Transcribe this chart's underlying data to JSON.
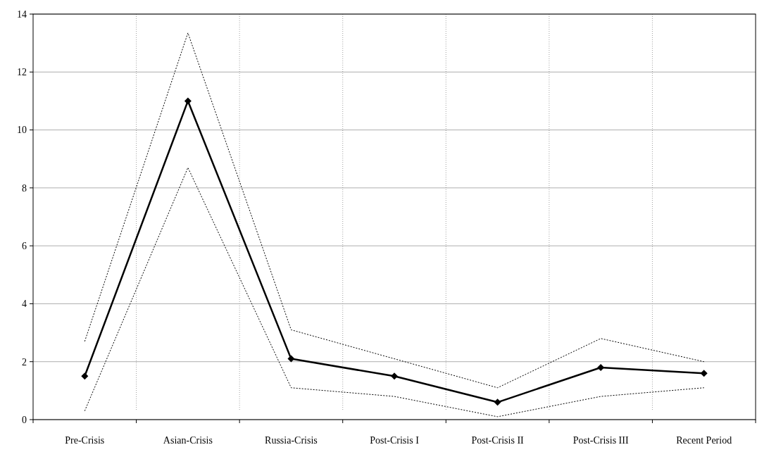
{
  "chart_data": {
    "type": "line",
    "categories": [
      "Pre-Crisis",
      "Asian-Crisis",
      "Russia-Crisis",
      "Post-Crisis I",
      "Post-Crisis II",
      "Post-Crisis III",
      "Recent Period"
    ],
    "series": [
      {
        "color": "#000000",
        "marker": "diamond",
        "line_style": "solid",
        "values": [
          1.5,
          11.0,
          2.1,
          1.5,
          0.6,
          1.8,
          1.6
        ]
      },
      {
        "color": "#000000",
        "marker": "none",
        "line_style": "dotted",
        "values": [
          2.7,
          13.35,
          3.1,
          2.1,
          1.1,
          2.8,
          2.0
        ]
      },
      {
        "color": "#000000",
        "marker": "none",
        "line_style": "dotted",
        "values": [
          0.3,
          8.7,
          1.1,
          0.8,
          0.1,
          0.8,
          1.1
        ]
      }
    ],
    "ylim": [
      0,
      14
    ],
    "yticks": [
      0,
      2,
      4,
      6,
      8,
      10,
      12,
      14
    ],
    "grid": true
  }
}
